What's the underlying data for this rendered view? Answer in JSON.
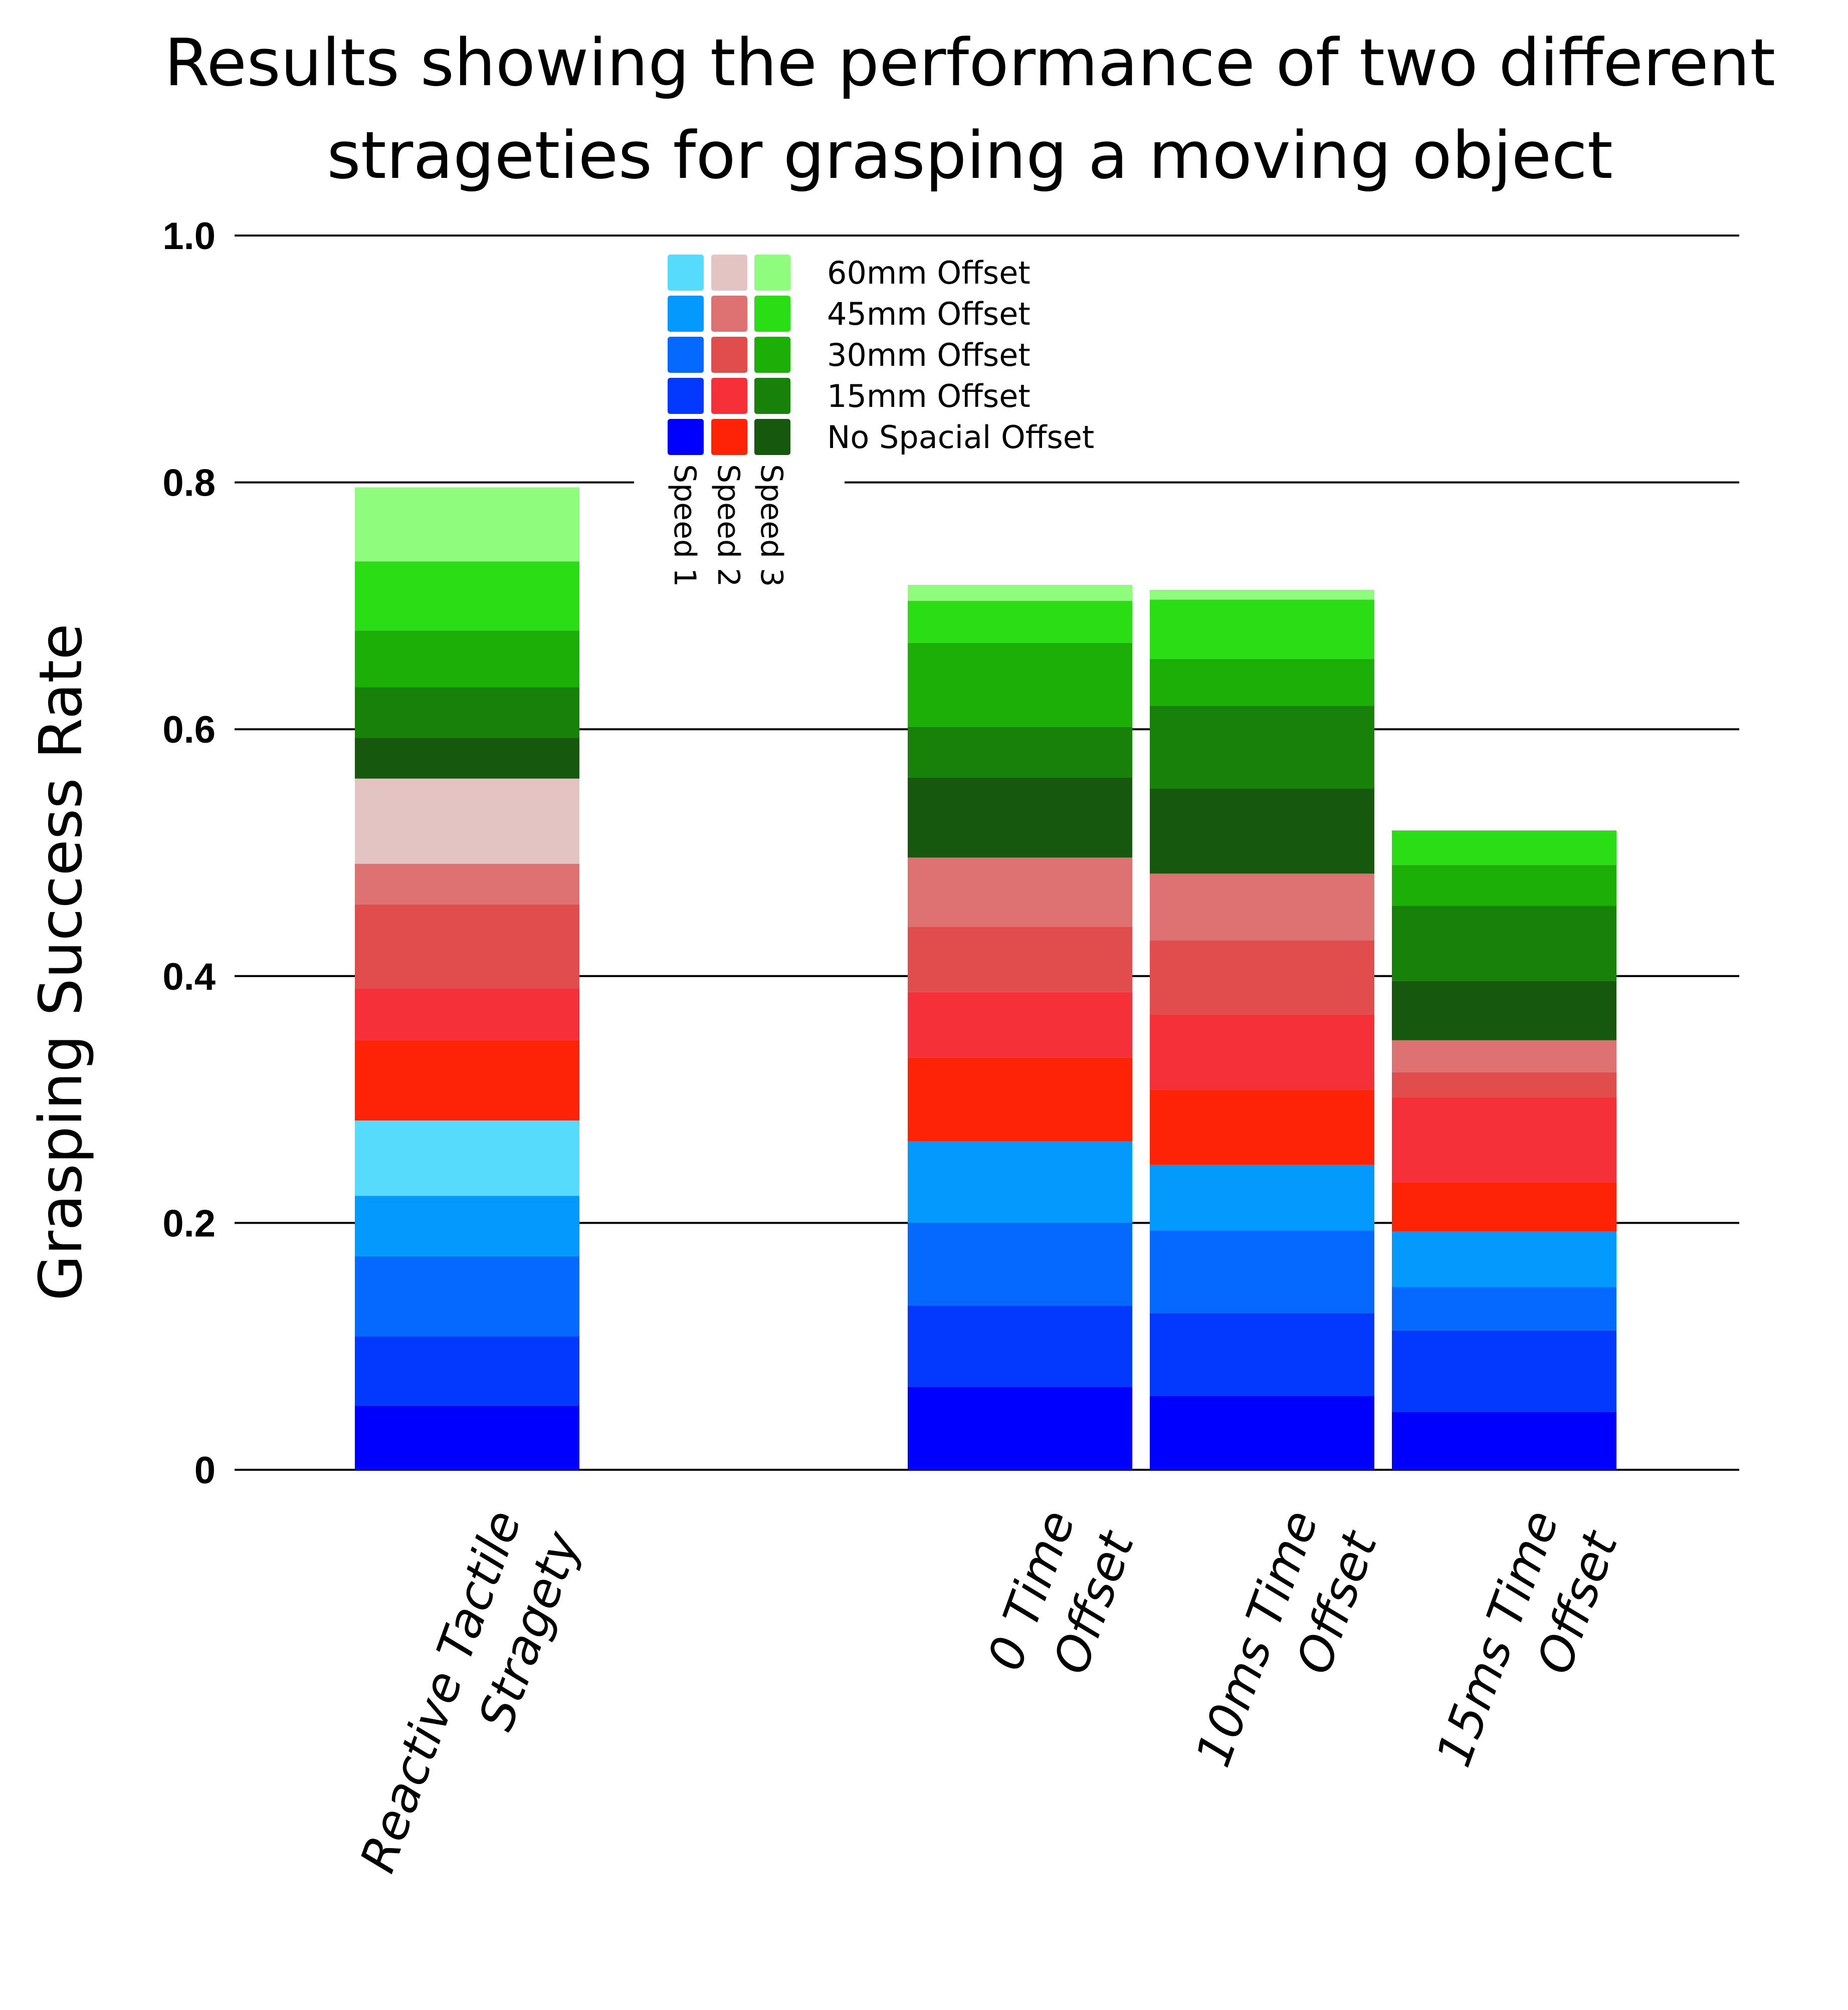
{
  "chart_data": {
    "type": "bar",
    "stacked": true,
    "title": [
      "Results showing the performance of two different",
      "strageties for grasping a moving object"
    ],
    "ylabel": "Grasping Success Rate",
    "xlabel": "",
    "ylim": [
      0,
      1.0
    ],
    "yticks": [
      {
        "value": 0,
        "label": "0"
      },
      {
        "value": 0.2,
        "label": "0.2"
      },
      {
        "value": 0.4,
        "label": "0.4"
      },
      {
        "value": 0.6,
        "label": "0.6"
      },
      {
        "value": 0.8,
        "label": "0.8"
      },
      {
        "value": 1.0,
        "label": "1.0"
      }
    ],
    "grid": true,
    "legend_position": "top-center",
    "categories": [
      {
        "lines": [
          "Reactive Tactile",
          "Stragety"
        ]
      },
      {
        "lines": [
          "0 Time",
          "Offset"
        ]
      },
      {
        "lines": [
          "10ms Time",
          "Offset"
        ]
      },
      {
        "lines": [
          "15ms Time",
          "Offset"
        ]
      }
    ],
    "legend": {
      "offsets": [
        "60mm Offset",
        "45mm Offset",
        "30mm Offset",
        "15mm Offset",
        "No Spacial Offset"
      ],
      "speeds": [
        "Speed 1",
        "Speed 2",
        "Speed 3"
      ]
    },
    "colors": {
      "Speed 1": {
        "No Spacial Offset": "#0000ff",
        "15mm Offset": "#0339ff",
        "30mm Offset": "#0568ff",
        "45mm Offset": "#0399fd",
        "60mm Offset": "#56dbfc"
      },
      "Speed 2": {
        "No Spacial Offset": "#fe2306",
        "15mm Offset": "#f53038",
        "30mm Offset": "#e14c4d",
        "45mm Offset": "#de7273",
        "60mm Offset": "#e3c4c3"
      },
      "Speed 3": {
        "No Spacial Offset": "#16590e",
        "15mm Offset": "#17810a",
        "30mm Offset": "#1caf08",
        "45mm Offset": "#2bdd14",
        "60mm Offset": "#8ffc7e"
      }
    },
    "series": [
      {
        "speed": "Speed 1",
        "offset": "No Spacial Offset",
        "values": [
          0.052,
          0.067,
          0.06,
          0.047
        ]
      },
      {
        "speed": "Speed 1",
        "offset": "15mm Offset",
        "values": [
          0.056,
          0.066,
          0.067,
          0.066
        ]
      },
      {
        "speed": "Speed 1",
        "offset": "30mm Offset",
        "values": [
          0.065,
          0.067,
          0.067,
          0.035
        ]
      },
      {
        "speed": "Speed 1",
        "offset": "45mm Offset",
        "values": [
          0.049,
          0.066,
          0.053,
          0.045
        ]
      },
      {
        "speed": "Speed 1",
        "offset": "60mm Offset",
        "values": [
          0.061,
          0.0,
          0.0,
          0.0
        ]
      },
      {
        "speed": "Speed 2",
        "offset": "No Spacial Offset",
        "values": [
          0.065,
          0.068,
          0.061,
          0.04
        ]
      },
      {
        "speed": "Speed 2",
        "offset": "15mm Offset",
        "values": [
          0.042,
          0.053,
          0.061,
          0.069
        ]
      },
      {
        "speed": "Speed 2",
        "offset": "30mm Offset",
        "values": [
          0.068,
          0.053,
          0.06,
          0.02
        ]
      },
      {
        "speed": "Speed 2",
        "offset": "45mm Offset",
        "values": [
          0.033,
          0.056,
          0.054,
          0.026
        ]
      },
      {
        "speed": "Speed 2",
        "offset": "60mm Offset",
        "values": [
          0.069,
          0.0,
          0.0,
          0.0
        ]
      },
      {
        "speed": "Speed 3",
        "offset": "No Spacial Offset",
        "values": [
          0.033,
          0.065,
          0.069,
          0.048
        ]
      },
      {
        "speed": "Speed 3",
        "offset": "15mm Offset",
        "values": [
          0.041,
          0.041,
          0.067,
          0.061
        ]
      },
      {
        "speed": "Speed 3",
        "offset": "30mm Offset",
        "values": [
          0.046,
          0.068,
          0.038,
          0.033
        ]
      },
      {
        "speed": "Speed 3",
        "offset": "45mm Offset",
        "values": [
          0.056,
          0.034,
          0.048,
          0.028
        ]
      },
      {
        "speed": "Speed 3",
        "offset": "60mm Offset",
        "values": [
          0.06,
          0.013,
          0.008,
          0.0
        ]
      }
    ]
  }
}
